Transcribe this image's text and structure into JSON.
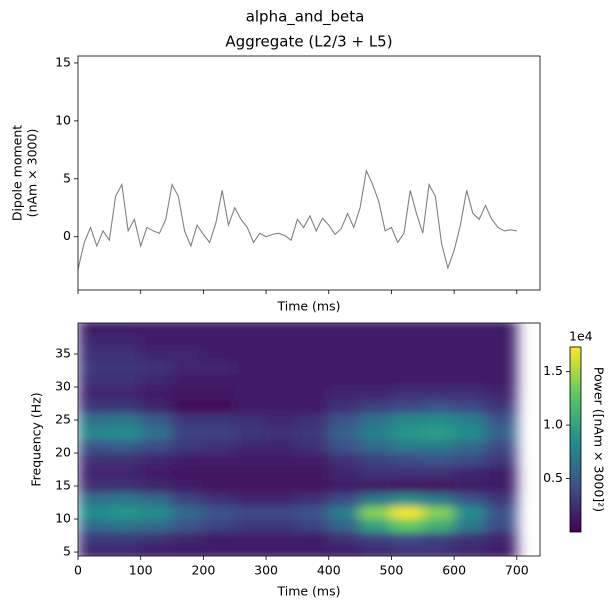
{
  "title": "alpha_and_beta",
  "chart_data": [
    {
      "type": "line",
      "title": "Aggregate (L2/3 + L5)",
      "x": [
        0,
        10,
        20,
        30,
        40,
        50,
        60,
        70,
        80,
        90,
        100,
        110,
        120,
        130,
        140,
        150,
        160,
        170,
        180,
        190,
        200,
        210,
        220,
        230,
        240,
        250,
        260,
        270,
        280,
        290,
        300,
        310,
        320,
        330,
        340,
        350,
        360,
        370,
        380,
        390,
        400,
        410,
        420,
        430,
        440,
        450,
        460,
        470,
        480,
        490,
        500,
        510,
        520,
        530,
        540,
        550,
        560,
        570,
        580,
        590,
        600,
        610,
        620,
        630,
        640,
        650,
        660,
        670,
        680,
        690,
        700
      ],
      "series": [
        {
          "color": "#808080",
          "values": [
            -2.8,
            -0.5,
            0.8,
            -0.8,
            0.5,
            -0.3,
            3.5,
            4.5,
            0.5,
            1.5,
            -0.8,
            0.8,
            0.5,
            0.3,
            1.5,
            4.5,
            3.5,
            0.5,
            -0.8,
            1,
            0.2,
            -0.5,
            1.2,
            4,
            1,
            2.5,
            1.5,
            0.8,
            -0.5,
            0.3,
            0,
            0.2,
            0.3,
            0.1,
            -0.3,
            1.5,
            0.8,
            1.8,
            0.5,
            1.6,
            1,
            0.2,
            0.7,
            2,
            0.8,
            2.5,
            5.7,
            4.5,
            3,
            0.5,
            0.8,
            -0.5,
            0.3,
            4,
            2,
            0.3,
            4.5,
            3.5,
            -0.6,
            -2.7,
            -1.2,
            1,
            4,
            2,
            1.5,
            2.7,
            1.5,
            0.8,
            0.5,
            0.6,
            0.5
          ]
        }
      ],
      "xlim": [
        0,
        737
      ],
      "xticks": [
        0,
        100,
        200,
        300,
        400,
        500,
        600,
        700
      ],
      "xtick_labels": false,
      "ylim": [
        -4.6,
        15.6
      ],
      "yticks": [
        0,
        5,
        10,
        15
      ],
      "xlabel": "Time (ms)",
      "ylabel": [
        "Dipole moment",
        "(nAm × 3000)"
      ]
    },
    {
      "type": "heatmap",
      "x": [
        25,
        75,
        125,
        175,
        225,
        275,
        325,
        375,
        425,
        475,
        525,
        575,
        625,
        675
      ],
      "y": [
        5,
        7,
        9,
        11,
        13,
        15,
        17,
        19,
        21,
        23,
        25,
        27,
        29,
        31,
        33,
        35,
        37,
        39
      ],
      "z": [
        [
          2000,
          2000,
          1500,
          1500,
          1500,
          1500,
          1500,
          1500,
          1500,
          2000,
          2500,
          2500,
          2000,
          1500
        ],
        [
          3000,
          3000,
          2500,
          2000,
          1500,
          1500,
          1500,
          1500,
          2500,
          3500,
          4000,
          3500,
          2500,
          2000
        ],
        [
          6000,
          6500,
          6000,
          4500,
          3500,
          3000,
          3000,
          3500,
          5500,
          10000,
          13000,
          11000,
          7000,
          4000
        ],
        [
          8500,
          9000,
          8500,
          6000,
          4500,
          4000,
          4000,
          4500,
          7500,
          14000,
          17000,
          14000,
          8500,
          4500
        ],
        [
          6500,
          7000,
          6000,
          3500,
          2500,
          2000,
          2000,
          2500,
          4000,
          7000,
          8500,
          7000,
          4500,
          3000
        ],
        [
          2500,
          2500,
          2000,
          1500,
          1000,
          1000,
          1000,
          1000,
          1500,
          1500,
          1000,
          1000,
          1500,
          1500
        ],
        [
          2000,
          2000,
          1500,
          1000,
          1000,
          1000,
          1000,
          1000,
          2000,
          2500,
          2500,
          2500,
          2000,
          1500
        ],
        [
          2500,
          2500,
          2000,
          1500,
          1500,
          1500,
          1500,
          1500,
          2500,
          3500,
          4000,
          4500,
          4000,
          3000
        ],
        [
          4500,
          5000,
          4000,
          3000,
          2500,
          2000,
          2000,
          2500,
          4500,
          6000,
          7000,
          7000,
          6000,
          4000
        ],
        [
          8000,
          8500,
          6500,
          3500,
          3500,
          3000,
          2500,
          3000,
          5500,
          7500,
          9000,
          9500,
          8500,
          5500
        ],
        [
          6500,
          7000,
          5000,
          3000,
          3000,
          2500,
          2000,
          2500,
          4500,
          6500,
          8000,
          8500,
          7500,
          4500
        ],
        [
          3000,
          3000,
          2000,
          500,
          500,
          1500,
          1500,
          1500,
          2500,
          3500,
          4000,
          4500,
          4000,
          3000
        ],
        [
          2000,
          2000,
          1500,
          1000,
          1000,
          1500,
          1500,
          1500,
          2000,
          2000,
          2500,
          2500,
          2500,
          2000
        ],
        [
          2500,
          2500,
          2000,
          1500,
          1500,
          1500,
          1500,
          1500,
          1500,
          1500,
          1500,
          1500,
          1500,
          1500
        ],
        [
          3000,
          3000,
          2500,
          2000,
          2000,
          1500,
          1500,
          1500,
          1500,
          1500,
          1500,
          1500,
          1500,
          1500
        ],
        [
          2500,
          2500,
          2000,
          2000,
          1500,
          1500,
          1500,
          1500,
          1500,
          1500,
          1500,
          1500,
          1500,
          1500
        ],
        [
          2000,
          2000,
          1500,
          1500,
          1500,
          1500,
          1500,
          1500,
          1500,
          1500,
          1500,
          1500,
          1500,
          1500
        ],
        [
          1500,
          1500,
          1500,
          1500,
          1500,
          1500,
          1500,
          1500,
          1500,
          1500,
          1500,
          1500,
          1500,
          1500
        ]
      ],
      "xlim": [
        0,
        737
      ],
      "xticks": [
        0,
        100,
        200,
        300,
        400,
        500,
        600,
        700
      ],
      "ylim": [
        4.4,
        39.7
      ],
      "yticks": [
        5,
        10,
        15,
        20,
        25,
        30,
        35
      ],
      "xlabel": "Time (ms)",
      "ylabel": "Frequency (Hz)",
      "colorbar": {
        "colormap": "viridis",
        "lim": [
          0,
          17300
        ],
        "ticks": [
          {
            "value": 5000,
            "label": "0.5"
          },
          {
            "value": 10000,
            "label": "1.0"
          },
          {
            "value": 15000,
            "label": "1.5"
          }
        ],
        "offset_label": "1e4",
        "label": "Power ([nAm × 3000]²)"
      }
    }
  ]
}
